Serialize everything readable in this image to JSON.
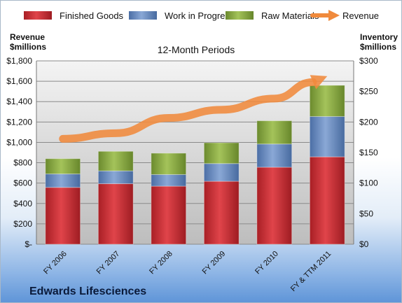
{
  "chart_data": {
    "type": "bar",
    "title": "12-Month Periods",
    "company": "Edwards Lifesciences",
    "categories": [
      "FY 2006",
      "FY 2007",
      "FY 2008",
      "FY 2009",
      "FY 2010",
      "FY & TTM 2011"
    ],
    "left_axis": {
      "label_line1": "Revenue",
      "label_line2": "$millions",
      "ylim": [
        0,
        1800
      ],
      "ticks": [
        0,
        200,
        400,
        600,
        800,
        1000,
        1200,
        1400,
        1600,
        1800
      ],
      "tick_labels": [
        "$-",
        "$200",
        "$400",
        "$600",
        "$800",
        "$1,000",
        "$1,200",
        "$1,400",
        "$1,600",
        "$1,800"
      ]
    },
    "right_axis": {
      "label_line1": "Inventory",
      "label_line2": "$millions",
      "ylim": [
        0,
        300
      ],
      "ticks": [
        0,
        50,
        100,
        150,
        200,
        250,
        300
      ],
      "tick_labels": [
        "$0",
        "$50",
        "$100",
        "$150",
        "$200",
        "$250",
        "$300"
      ]
    },
    "stacked_series": [
      {
        "name": "Finished Goods",
        "color": "#c0282d",
        "values": [
          93,
          99,
          95,
          103,
          126,
          143
        ],
        "axis": "right"
      },
      {
        "name": "Work in Progress",
        "color": "#5b7fb8",
        "values": [
          22,
          21,
          19,
          29,
          38,
          66
        ],
        "axis": "right"
      },
      {
        "name": "Raw Materials",
        "color": "#7e9d3c",
        "values": [
          25,
          32,
          35,
          34,
          38,
          51
        ],
        "axis": "right"
      }
    ],
    "line_series": {
      "name": "Revenue",
      "color": "#f08a3c",
      "values": [
        1035,
        1090,
        1240,
        1320,
        1430,
        1650
      ],
      "axis": "left"
    },
    "grid": true,
    "legend_position": "top"
  }
}
